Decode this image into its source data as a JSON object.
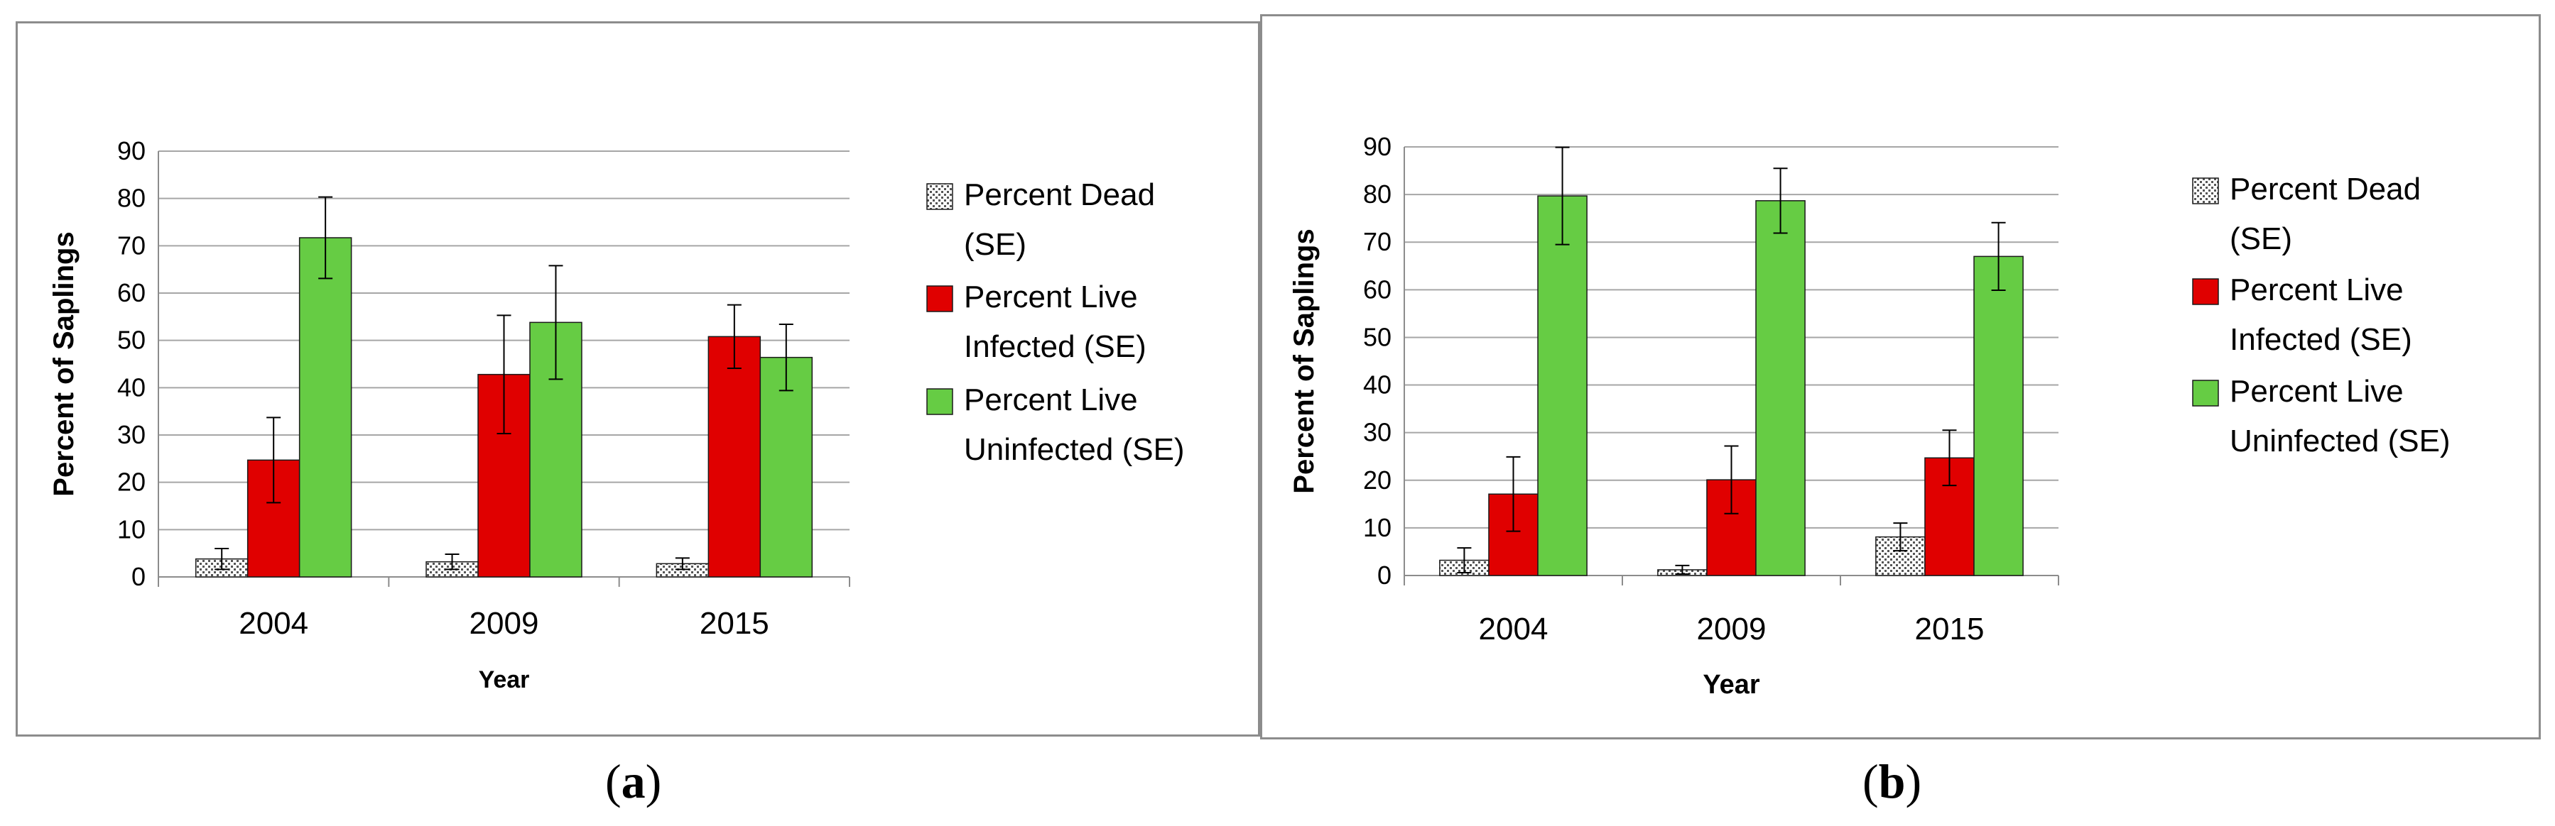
{
  "chart_data": [
    {
      "type": "bar",
      "id": "a",
      "panel_label": "a",
      "xlabel": "Year",
      "ylabel": "Percent of Saplings",
      "ylim": [
        0,
        90
      ],
      "yticks": [
        0,
        10,
        20,
        30,
        40,
        50,
        60,
        70,
        80,
        90
      ],
      "grid": true,
      "legend_position": "right",
      "categories": [
        "2004",
        "2009",
        "2015"
      ],
      "series": [
        {
          "name": "Percent Dead (SE)",
          "legend_lines": [
            "Percent Dead",
            "(SE)"
          ],
          "color": "#d9d9d9",
          "pattern": "dots",
          "values": [
            3.8,
            3.2,
            2.8
          ],
          "errors": [
            2.2,
            1.6,
            1.2
          ]
        },
        {
          "name": "Percent Live Infected (SE)",
          "legend_lines": [
            "Percent Live",
            "Infected (SE)"
          ],
          "color": "#e00000",
          "values": [
            24.7,
            42.8,
            50.8
          ],
          "errors": [
            9.0,
            12.5,
            6.7
          ]
        },
        {
          "name": "Percent Live Uninfected (SE)",
          "legend_lines": [
            "Percent Live",
            "Uninfected (SE)"
          ],
          "color": "#66cc44",
          "values": [
            71.7,
            53.8,
            46.4
          ],
          "errors": [
            8.6,
            12.0,
            7.0
          ]
        }
      ]
    },
    {
      "type": "bar",
      "id": "b",
      "panel_label": "b",
      "xlabel": "Year",
      "ylabel": "Percent of Saplings",
      "ylim": [
        0,
        90
      ],
      "yticks": [
        0,
        10,
        20,
        30,
        40,
        50,
        60,
        70,
        80,
        90
      ],
      "grid": true,
      "legend_position": "right",
      "categories": [
        "2004",
        "2009",
        "2015"
      ],
      "series": [
        {
          "name": "Percent Dead (SE)",
          "legend_lines": [
            "Percent Dead",
            "(SE)"
          ],
          "color": "#d9d9d9",
          "pattern": "dots",
          "values": [
            3.2,
            1.2,
            8.1
          ],
          "errors": [
            2.6,
            0.9,
            2.9
          ]
        },
        {
          "name": "Percent Live Infected (SE)",
          "legend_lines": [
            "Percent Live",
            "Infected (SE)"
          ],
          "color": "#e00000",
          "values": [
            17.1,
            20.1,
            24.7
          ],
          "errors": [
            7.8,
            7.1,
            5.8
          ]
        },
        {
          "name": "Percent Live Uninfected (SE)",
          "legend_lines": [
            "Percent Live",
            "Uninfected (SE)"
          ],
          "color": "#66cc44",
          "values": [
            79.7,
            78.7,
            67.0
          ],
          "errors": [
            10.2,
            6.8,
            7.1
          ]
        }
      ]
    }
  ]
}
